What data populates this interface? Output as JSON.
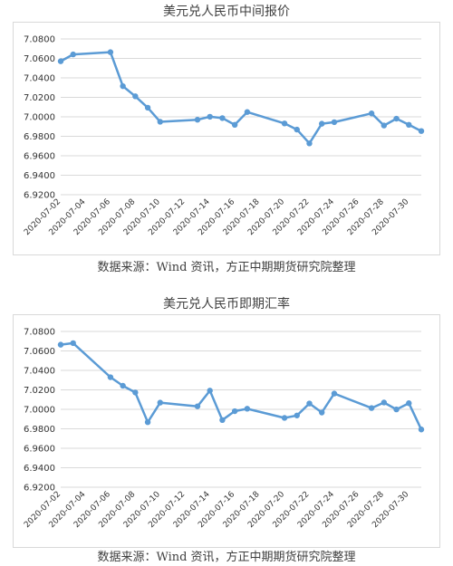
{
  "chart_data": [
    {
      "type": "line",
      "title": "美元兑人民币中间报价",
      "source": "数据来源：Wind 资讯，方正中期期货研究院整理",
      "xlabel": "",
      "ylabel": "",
      "ylim": [
        6.92,
        7.08
      ],
      "yticks": [
        "7.0800",
        "7.0600",
        "7.0400",
        "7.0200",
        "7.0000",
        "6.9800",
        "6.9600",
        "6.9400",
        "6.9200"
      ],
      "xtick_labels": [
        "2020-07-02",
        "2020-07-04",
        "2020-07-06",
        "2020-07-08",
        "2020-07-10",
        "2020-07-12",
        "2020-07-14",
        "2020-07-16",
        "2020-07-18",
        "2020-07-20",
        "2020-07-22",
        "2020-07-24",
        "2020-07-26",
        "2020-07-28",
        "2020-07-30"
      ],
      "grid": true,
      "color": "#5b9bd5",
      "x": [
        "2020-07-02",
        "2020-07-03",
        "2020-07-06",
        "2020-07-07",
        "2020-07-08",
        "2020-07-09",
        "2020-07-10",
        "2020-07-13",
        "2020-07-14",
        "2020-07-15",
        "2020-07-16",
        "2020-07-17",
        "2020-07-20",
        "2020-07-21",
        "2020-07-22",
        "2020-07-23",
        "2020-07-24",
        "2020-07-27",
        "2020-07-28",
        "2020-07-29",
        "2020-07-30",
        "2020-07-31"
      ],
      "values": [
        7.0571,
        7.0641,
        7.0664,
        7.0315,
        7.0211,
        7.0094,
        6.9949,
        6.997,
        7.0001,
        6.9987,
        6.9918,
        7.0049,
        6.9932,
        6.9869,
        6.9727,
        6.9929,
        6.9945,
        7.0035,
        6.9911,
        6.9981,
        6.9918,
        6.9854
      ]
    },
    {
      "type": "line",
      "title": "美元兑人民币即期汇率",
      "source": "数据来源：Wind 资讯，方正中期期货研究院整理",
      "xlabel": "",
      "ylabel": "",
      "ylim": [
        6.92,
        7.08
      ],
      "yticks": [
        "7.0800",
        "7.0600",
        "7.0400",
        "7.0200",
        "7.0000",
        "6.9800",
        "6.9600",
        "6.9400",
        "6.9200"
      ],
      "xtick_labels": [
        "2020-07-02",
        "2020-07-04",
        "2020-07-06",
        "2020-07-08",
        "2020-07-10",
        "2020-07-12",
        "2020-07-14",
        "2020-07-16",
        "2020-07-18",
        "2020-07-20",
        "2020-07-22",
        "2020-07-24",
        "2020-07-26",
        "2020-07-28",
        "2020-07-30"
      ],
      "grid": true,
      "color": "#5b9bd5",
      "x": [
        "2020-07-02",
        "2020-07-03",
        "2020-07-06",
        "2020-07-07",
        "2020-07-08",
        "2020-07-09",
        "2020-07-10",
        "2020-07-13",
        "2020-07-14",
        "2020-07-15",
        "2020-07-16",
        "2020-07-17",
        "2020-07-20",
        "2020-07-21",
        "2020-07-22",
        "2020-07-23",
        "2020-07-24",
        "2020-07-27",
        "2020-07-28",
        "2020-07-29",
        "2020-07-30",
        "2020-07-31"
      ],
      "values": [
        7.0664,
        7.068,
        7.033,
        7.0242,
        7.0173,
        6.9868,
        7.0069,
        7.0031,
        7.0192,
        6.989,
        6.9981,
        7.0006,
        6.9912,
        6.9937,
        7.006,
        6.9967,
        7.0162,
        7.0013,
        7.007,
        6.9999,
        7.0063,
        6.9793
      ]
    }
  ]
}
